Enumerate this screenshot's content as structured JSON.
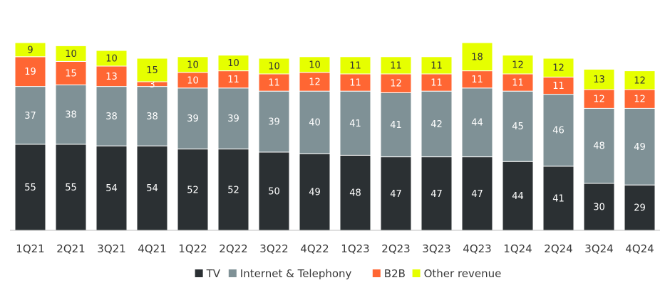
{
  "chart_data": {
    "type": "bar",
    "stacked": true,
    "categories": [
      "1Q21",
      "2Q21",
      "3Q21",
      "4Q21",
      "1Q22",
      "2Q22",
      "3Q22",
      "4Q22",
      "1Q23",
      "2Q23",
      "3Q23",
      "4Q23",
      "1Q24",
      "2Q24",
      "3Q24",
      "4Q24"
    ],
    "series": [
      {
        "name": "TV",
        "color": "#2b3033",
        "label_color": "#ffffff",
        "values": [
          55,
          55,
          54,
          54,
          52,
          52,
          50,
          49,
          48,
          47,
          47,
          47,
          44,
          41,
          30,
          29
        ]
      },
      {
        "name": "Internet & Telephony",
        "color": "#7f9196",
        "label_color": "#ffffff",
        "values": [
          37,
          38,
          38,
          38,
          39,
          39,
          39,
          40,
          41,
          41,
          42,
          44,
          45,
          46,
          48,
          49
        ]
      },
      {
        "name": "B2B",
        "color": "#ff6633",
        "label_color": "#ffffff",
        "values": [
          19,
          15,
          13,
          3,
          10,
          11,
          11,
          12,
          11,
          12,
          11,
          11,
          11,
          11,
          12,
          12
        ]
      },
      {
        "name": "Other revenue",
        "color": "#e6ff00",
        "label_color": "#333333",
        "values": [
          9,
          10,
          10,
          15,
          10,
          10,
          10,
          10,
          11,
          11,
          11,
          18,
          12,
          12,
          13,
          12
        ]
      }
    ],
    "title": "",
    "xlabel": "",
    "ylabel": "",
    "ylim": [
      0,
      120
    ],
    "grid": false,
    "legend_position": "bottom"
  }
}
